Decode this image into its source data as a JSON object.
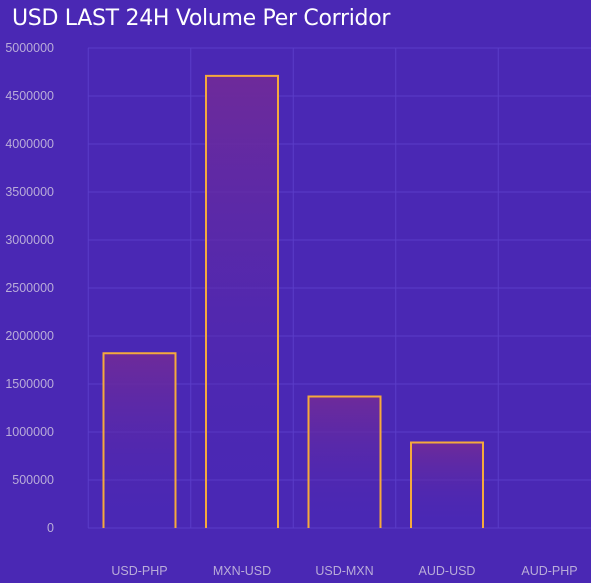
{
  "chart_data": {
    "type": "bar",
    "title": "USD LAST 24H Volume Per Corridor",
    "categories": [
      "USD-PHP",
      "MXN-USD",
      "USD-MXN",
      "AUD-USD",
      "AUD-PHP"
    ],
    "values": [
      1820000,
      4710000,
      1370000,
      890000,
      0
    ],
    "yticks": [
      "0",
      "500000",
      "1000000",
      "1500000",
      "2000000",
      "2500000",
      "3000000",
      "3500000",
      "4000000",
      "4500000",
      "5000000"
    ],
    "ylim": [
      0,
      5000000
    ],
    "xlabel": "",
    "ylabel": "",
    "grid": true,
    "colors": {
      "background": "#4a28b4",
      "bar_border": "#f5a93c",
      "bar_fill_top": "#6e2a9a",
      "grid": "#5a3cc8",
      "tick_text": "#b9acd9",
      "title_text": "#ffffff"
    }
  }
}
